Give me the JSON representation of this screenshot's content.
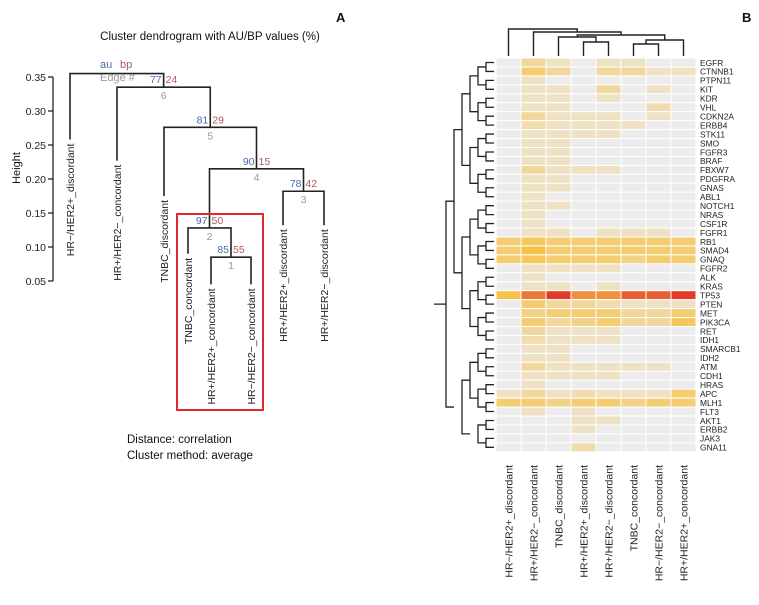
{
  "panel_a": {
    "label": "A",
    "title": "Cluster dendrogram with AU/BP values (%)",
    "y_axis_label": "Height",
    "legend": {
      "au": "au",
      "bp": "bp",
      "edge": "Edge #"
    },
    "distance_text": "Distance: correlation",
    "method_text": "Cluster method: average",
    "colors": {
      "au": "#4a6aa8",
      "bp": "#b05a5a",
      "edge": "#9a9a9a",
      "highlight": "#e0282e",
      "line": "#222222"
    }
  },
  "panel_b": {
    "label": "B"
  },
  "chart_data": [
    {
      "type": "dendrogram",
      "title": "Cluster dendrogram with AU/BP values (%)",
      "ylabel": "Height",
      "ylim": [
        0.05,
        0.36
      ],
      "y_ticks": [
        0.35,
        0.3,
        0.25,
        0.2,
        0.15,
        0.1,
        0.05
      ],
      "y_tick_labels": [
        "0.35",
        "0.30",
        "0.25",
        "0.20",
        "0.15",
        "0.10",
        "0.05"
      ],
      "leaves": [
        "HR−/HER2+_discordant",
        "HR+/HER2−_concordant",
        "TNBC_discordant",
        "TNBC_concordant",
        "HR+/HER2+_concordant",
        "HR−/HER2−_concordant",
        "HR+/HER2+_discordant",
        "HR+/HER2−_discordant"
      ],
      "leaf_heights": [
        0.258,
        0.227,
        0.175,
        0.09,
        0.045,
        0.045,
        0.132,
        0.132
      ],
      "merges": [
        {
          "edge": "1",
          "au": "85",
          "bp": "55",
          "height": 0.085,
          "left": 4,
          "right": 5
        },
        {
          "edge": "2",
          "au": "97",
          "bp": "50",
          "height": 0.128,
          "left": 3,
          "right": "m1"
        },
        {
          "edge": "3",
          "au": "78",
          "bp": "42",
          "height": 0.182,
          "left": 6,
          "right": 7
        },
        {
          "edge": "4",
          "au": "90",
          "bp": "15",
          "height": 0.215,
          "left": "m2",
          "right": "m3"
        },
        {
          "edge": "5",
          "au": "81",
          "bp": "29",
          "height": 0.276,
          "left": 2,
          "right": "m4"
        },
        {
          "edge": "6",
          "au": "77",
          "bp": "24",
          "height": 0.335,
          "left": 1,
          "right": "m5"
        },
        {
          "edge": "7",
          "height": 0.355,
          "left": 0,
          "right": "m6"
        }
      ],
      "highlight": [
        "TNBC_concordant",
        "HR+/HER2+_concordant",
        "HR−/HER2−_concordant"
      ]
    },
    {
      "type": "heatmap",
      "columns": [
        "HR−/HER2+_discordant",
        "HR+/HER2−_concordant",
        "TNBC_discordant",
        "HR+/HER2+_discordant",
        "HR+/HER2−_discordant",
        "TNBC_concordant",
        "HR−/HER2−_concordant",
        "HR+/HER2+_concordant"
      ],
      "rows": [
        "EGFR",
        "CTNNB1",
        "PTPN11",
        "KIT",
        "KDR",
        "VHL",
        "CDKN2A",
        "ERBB4",
        "STK11",
        "SMO",
        "FGFR3",
        "BRAF",
        "FBXW7",
        "PDGFRA",
        "GNAS",
        "ABL1",
        "NOTCH1",
        "NRAS",
        "CSF1R",
        "FGFR1",
        "RB1",
        "SMAD4",
        "GNAQ",
        "FGFR2",
        "ALK",
        "KRAS",
        "TP53",
        "PTEN",
        "MET",
        "PIK3CA",
        "RET",
        "IDH1",
        "SMARCB1",
        "IDH2",
        "ATM",
        "CDH1",
        "HRAS",
        "APC",
        "MLH1",
        "FLT3",
        "AKT1",
        "ERBB2",
        "JAK3",
        "GNA11"
      ],
      "value_scale": "relative mutation frequency (0 = grey, 1 = red)",
      "values": [
        [
          0.0,
          0.2,
          0.1,
          0.0,
          0.1,
          0.1,
          0.0,
          0.0
        ],
        [
          0.0,
          0.3,
          0.2,
          0.0,
          0.2,
          0.2,
          0.1,
          0.1
        ],
        [
          0.0,
          0.1,
          0.0,
          0.0,
          0.0,
          0.0,
          0.0,
          0.0
        ],
        [
          0.0,
          0.1,
          0.1,
          0.0,
          0.2,
          0.0,
          0.1,
          0.0
        ],
        [
          0.0,
          0.1,
          0.1,
          0.0,
          0.1,
          0.0,
          0.0,
          0.0
        ],
        [
          0.0,
          0.1,
          0.1,
          0.0,
          0.0,
          0.0,
          0.15,
          0.0
        ],
        [
          0.0,
          0.2,
          0.1,
          0.1,
          0.1,
          0.0,
          0.1,
          0.0
        ],
        [
          0.0,
          0.15,
          0.1,
          0.1,
          0.1,
          0.1,
          0.0,
          0.0
        ],
        [
          0.0,
          0.1,
          0.1,
          0.1,
          0.1,
          0.0,
          0.0,
          0.0
        ],
        [
          0.0,
          0.1,
          0.1,
          0.0,
          0.0,
          0.0,
          0.0,
          0.0
        ],
        [
          0.0,
          0.1,
          0.1,
          0.0,
          0.0,
          0.0,
          0.0,
          0.0
        ],
        [
          0.0,
          0.1,
          0.1,
          0.0,
          0.0,
          0.0,
          0.0,
          0.0
        ],
        [
          0.0,
          0.2,
          0.1,
          0.1,
          0.1,
          0.0,
          0.0,
          0.0
        ],
        [
          0.0,
          0.1,
          0.1,
          0.0,
          0.0,
          0.0,
          0.0,
          0.0
        ],
        [
          0.0,
          0.1,
          0.1,
          0.0,
          0.0,
          0.0,
          0.0,
          0.0
        ],
        [
          0.0,
          0.1,
          0.0,
          0.0,
          0.0,
          0.0,
          0.0,
          0.0
        ],
        [
          0.0,
          0.1,
          0.1,
          0.0,
          0.0,
          0.0,
          0.0,
          0.0
        ],
        [
          0.0,
          0.1,
          0.0,
          0.0,
          0.0,
          0.0,
          0.0,
          0.0
        ],
        [
          0.0,
          0.1,
          0.0,
          0.0,
          0.0,
          0.0,
          0.0,
          0.0
        ],
        [
          0.0,
          0.1,
          0.1,
          0.0,
          0.1,
          0.1,
          0.1,
          0.0
        ],
        [
          0.3,
          0.35,
          0.3,
          0.3,
          0.3,
          0.3,
          0.3,
          0.3
        ],
        [
          0.3,
          0.4,
          0.3,
          0.3,
          0.3,
          0.3,
          0.3,
          0.3
        ],
        [
          0.3,
          0.35,
          0.3,
          0.3,
          0.3,
          0.25,
          0.3,
          0.3
        ],
        [
          0.0,
          0.1,
          0.1,
          0.1,
          0.1,
          0.0,
          0.0,
          0.0
        ],
        [
          0.0,
          0.1,
          0.0,
          0.0,
          0.0,
          0.0,
          0.0,
          0.0
        ],
        [
          0.0,
          0.1,
          0.1,
          0.0,
          0.1,
          0.0,
          0.0,
          0.0
        ],
        [
          0.4,
          0.7,
          0.95,
          0.6,
          0.6,
          0.8,
          0.8,
          0.95
        ],
        [
          0.0,
          0.3,
          0.2,
          0.2,
          0.15,
          0.1,
          0.1,
          0.1
        ],
        [
          0.0,
          0.25,
          0.3,
          0.3,
          0.3,
          0.2,
          0.2,
          0.3
        ],
        [
          0.0,
          0.3,
          0.2,
          0.25,
          0.3,
          0.2,
          0.2,
          0.35
        ],
        [
          0.0,
          0.2,
          0.1,
          0.1,
          0.1,
          0.0,
          0.0,
          0.0
        ],
        [
          0.0,
          0.15,
          0.1,
          0.1,
          0.1,
          0.0,
          0.0,
          0.0
        ],
        [
          0.0,
          0.1,
          0.1,
          0.0,
          0.0,
          0.0,
          0.0,
          0.0
        ],
        [
          0.0,
          0.1,
          0.1,
          0.0,
          0.0,
          0.0,
          0.0,
          0.0
        ],
        [
          0.0,
          0.2,
          0.1,
          0.1,
          0.1,
          0.1,
          0.1,
          0.0
        ],
        [
          0.0,
          0.1,
          0.1,
          0.1,
          0.1,
          0.0,
          0.0,
          0.0
        ],
        [
          0.0,
          0.1,
          0.0,
          0.0,
          0.0,
          0.0,
          0.0,
          0.0
        ],
        [
          0.1,
          0.2,
          0.1,
          0.15,
          0.1,
          0.1,
          0.1,
          0.3
        ],
        [
          0.3,
          0.3,
          0.25,
          0.3,
          0.3,
          0.25,
          0.3,
          0.3
        ],
        [
          0.0,
          0.1,
          0.0,
          0.1,
          0.0,
          0.0,
          0.0,
          0.0
        ],
        [
          0.0,
          0.0,
          0.0,
          0.1,
          0.1,
          0.0,
          0.0,
          0.0
        ],
        [
          0.0,
          0.0,
          0.0,
          0.1,
          0.0,
          0.0,
          0.0,
          0.0
        ],
        [
          0.0,
          0.0,
          0.0,
          0.0,
          0.0,
          0.0,
          0.0,
          0.0
        ],
        [
          0.0,
          0.0,
          0.0,
          0.15,
          0.0,
          0.0,
          0.0,
          0.0
        ]
      ],
      "colors": {
        "low": "#ececec",
        "mid": "#f6c24a",
        "high": "#e23b27",
        "grid": "#ffffff",
        "line": "#222222"
      }
    }
  ]
}
